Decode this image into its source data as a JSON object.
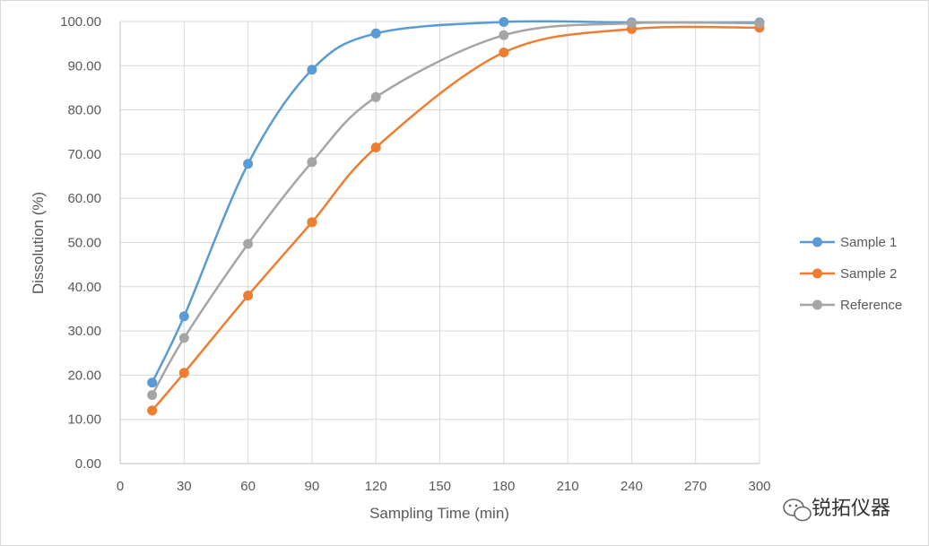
{
  "chart_data": {
    "type": "line",
    "xlabel": "Sampling Time (min)",
    "ylabel": "Dissolution (%)",
    "xlim": [
      0,
      300
    ],
    "ylim": [
      0,
      100
    ],
    "x_ticks": [
      "0",
      "30",
      "60",
      "90",
      "120",
      "150",
      "180",
      "210",
      "240",
      "270",
      "300"
    ],
    "y_ticks": [
      "0.00",
      "10.00",
      "20.00",
      "30.00",
      "40.00",
      "50.00",
      "60.00",
      "70.00",
      "80.00",
      "90.00",
      "100.00"
    ],
    "grid": true,
    "legend_position": "right",
    "series": [
      {
        "name": "Sample 1",
        "color": "#5b9bd5",
        "x": [
          15,
          30,
          60,
          90,
          120,
          180,
          240,
          300
        ],
        "y": [
          18.3,
          33.3,
          67.8,
          89.1,
          97.3,
          99.9,
          99.8,
          99.8
        ]
      },
      {
        "name": "Sample 2",
        "color": "#ed7d31",
        "x": [
          15,
          30,
          60,
          90,
          120,
          180,
          240,
          300
        ],
        "y": [
          12.0,
          20.5,
          38.0,
          54.6,
          71.5,
          93.0,
          98.3,
          98.6
        ]
      },
      {
        "name": "Reference",
        "color": "#a5a5a5",
        "x": [
          15,
          30,
          60,
          90,
          120,
          180,
          240,
          300
        ],
        "y": [
          15.5,
          28.4,
          49.7,
          68.2,
          82.9,
          96.9,
          99.6,
          99.6
        ]
      }
    ]
  },
  "watermark": {
    "text": "锐拓仪器",
    "icon": "wechat-icon"
  }
}
